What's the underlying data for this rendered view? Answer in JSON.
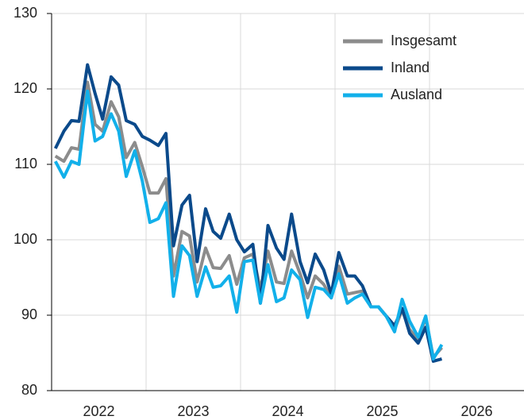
{
  "chart_data": {
    "type": "line",
    "x": [
      2022.04,
      2022.13,
      2022.21,
      2022.29,
      2022.38,
      2022.46,
      2022.54,
      2022.63,
      2022.71,
      2022.79,
      2022.88,
      2022.96,
      2023.04,
      2023.13,
      2023.21,
      2023.29,
      2023.38,
      2023.46,
      2023.54,
      2023.63,
      2023.71,
      2023.79,
      2023.88,
      2023.96,
      2024.04,
      2024.13,
      2024.21,
      2024.29,
      2024.38,
      2024.46,
      2024.54,
      2024.63,
      2024.71,
      2024.79,
      2024.88,
      2024.96,
      2025.04,
      2025.13,
      2025.21,
      2025.29,
      2025.38,
      2025.46,
      2025.54,
      2025.63,
      2025.71,
      2025.79,
      2025.88,
      2025.96,
      2026.04,
      2026.13
    ],
    "series": [
      {
        "name": "Insgesamt",
        "color": "#8c8c8c",
        "values": [
          111.1,
          110.4,
          112.2,
          112.0,
          120.9,
          115.3,
          114.4,
          118.3,
          116.3,
          110.9,
          112.9,
          109.7,
          106.2,
          106.2,
          108.1,
          95.2,
          101.1,
          100.5,
          94.4,
          98.9,
          96.3,
          96.2,
          97.9,
          94.1,
          97.6,
          98.1,
          93.4,
          98.5,
          94.4,
          94.2,
          98.5,
          95.5,
          92.3,
          95.2,
          94.1,
          92.3,
          96.5,
          92.8,
          93.0,
          93.2,
          91.1,
          91.1,
          89.9,
          88.1,
          90.7,
          88.1,
          86.7,
          89.7,
          84.4,
          85.7
        ]
      },
      {
        "name": "Inland",
        "color": "#0b4a8b",
        "values": [
          112.1,
          114.4,
          115.8,
          115.7,
          123.2,
          119.4,
          116.0,
          121.6,
          120.5,
          115.8,
          115.3,
          113.7,
          113.2,
          112.5,
          114.1,
          99.2,
          104.6,
          105.9,
          97.1,
          104.1,
          101.1,
          100.2,
          103.4,
          100.0,
          98.4,
          99.4,
          91.6,
          101.9,
          98.9,
          97.4,
          103.4,
          97.1,
          94.3,
          98.1,
          96.0,
          92.8,
          98.3,
          95.2,
          95.2,
          93.9,
          91.1,
          91.1,
          89.9,
          88.6,
          90.9,
          87.6,
          86.3,
          88.4,
          83.9,
          84.2
        ]
      },
      {
        "name": "Ausland",
        "color": "#12b0ea",
        "values": [
          110.4,
          108.3,
          110.4,
          110.0,
          119.7,
          113.1,
          113.7,
          116.7,
          114.4,
          108.4,
          111.8,
          107.8,
          102.3,
          102.8,
          104.9,
          92.5,
          99.2,
          97.9,
          92.5,
          96.4,
          93.7,
          93.9,
          95.2,
          90.4,
          97.1,
          97.3,
          91.6,
          96.7,
          91.8,
          92.3,
          96.0,
          94.7,
          89.7,
          93.7,
          93.4,
          92.3,
          95.5,
          91.6,
          92.3,
          92.8,
          91.1,
          91.1,
          89.9,
          87.8,
          92.1,
          89.2,
          87.1,
          89.9,
          84.2,
          86.1
        ]
      }
    ],
    "xlim": [
      2022,
      2027
    ],
    "xticks": [
      {
        "value": 2022.5,
        "label": "2022"
      },
      {
        "value": 2023.5,
        "label": "2023"
      },
      {
        "value": 2024.5,
        "label": "2024"
      },
      {
        "value": 2025.5,
        "label": "2025"
      },
      {
        "value": 2026.5,
        "label": "2026"
      }
    ],
    "x_gridlines": [
      2023,
      2024,
      2025,
      2026
    ],
    "ylim": [
      80,
      130
    ],
    "yticks": [
      80,
      90,
      100,
      110,
      120,
      130
    ],
    "grid": true,
    "legend": "top-right"
  }
}
